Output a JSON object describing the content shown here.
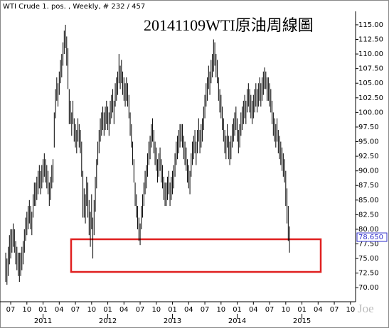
{
  "chart_data": {
    "type": "ohlc",
    "header": "WTI Crude 1. pos. , Weekly, # 232 / 457",
    "title": "20141109WTI原油周線圖",
    "watermark": "Joe",
    "color": "#000000",
    "categories": [
      null,
      null,
      null,
      null,
      null,
      null,
      null,
      null,
      null,
      null,
      null,
      null,
      null,
      null,
      null,
      null,
      null,
      null,
      null,
      null,
      null,
      null,
      null,
      null,
      null,
      null,
      null,
      null,
      null,
      null,
      null,
      null,
      null,
      null,
      null,
      null,
      null,
      null,
      null,
      null,
      null,
      null,
      null,
      null,
      null,
      null,
      null,
      null,
      null,
      null,
      null,
      null,
      null,
      null,
      null,
      null,
      null,
      null,
      null,
      null,
      null,
      null,
      null,
      null,
      null,
      null,
      null,
      null,
      null,
      null,
      null,
      null,
      null,
      null,
      null,
      null,
      null,
      null,
      null,
      null,
      null,
      null,
      null,
      null,
      null,
      null,
      null,
      null,
      null,
      null,
      null,
      null,
      null,
      null,
      null,
      null,
      null,
      null,
      null,
      null,
      null,
      null,
      null,
      null,
      null,
      null,
      null,
      null,
      null,
      null,
      null,
      null,
      null,
      null,
      null,
      null,
      null,
      null,
      null,
      null,
      null,
      null,
      null,
      null,
      null,
      null,
      null,
      null,
      null,
      null,
      null,
      null,
      null,
      null,
      null,
      null,
      null,
      null,
      null,
      null,
      null,
      null,
      null,
      null,
      null,
      null,
      null,
      null,
      null,
      null,
      null,
      null,
      null,
      null,
      null,
      null,
      null,
      null,
      null,
      null,
      null,
      null,
      null,
      null,
      null,
      null,
      null,
      null,
      null,
      null,
      null,
      null,
      null,
      null,
      null,
      null,
      null,
      null,
      null,
      null,
      null,
      null,
      null,
      null,
      null,
      null,
      null,
      null,
      null,
      null,
      null,
      null,
      null,
      null,
      null,
      null,
      null,
      null,
      null,
      null,
      null,
      null,
      null,
      null,
      null,
      null,
      null,
      null,
      null,
      null,
      null,
      null,
      null,
      null,
      null,
      null,
      null,
      null,
      null,
      null,
      null,
      null,
      null,
      null,
      null,
      null,
      null,
      null,
      null
    ],
    "high": [
      76,
      75,
      77,
      79,
      80,
      80,
      81,
      80,
      78,
      77,
      76,
      76,
      76,
      77,
      78,
      80,
      82,
      83,
      84,
      85,
      84,
      83,
      86,
      88,
      88,
      89,
      90,
      91,
      90,
      91,
      92,
      93,
      92,
      91,
      90,
      88,
      89,
      91,
      92,
      100,
      104,
      106,
      105,
      107,
      109,
      110,
      112,
      114,
      115,
      113,
      111,
      104,
      102,
      100,
      102,
      99,
      98,
      97,
      99,
      98,
      97,
      95,
      90,
      87,
      86,
      89,
      88,
      85,
      83,
      86,
      82,
      85,
      89,
      92,
      95,
      97,
      99,
      100,
      101,
      100,
      101,
      102,
      101,
      100,
      102,
      103,
      104,
      102,
      105,
      106,
      107,
      110,
      108,
      109,
      107,
      106,
      105,
      106,
      105,
      103,
      100,
      98,
      95,
      92,
      88,
      86,
      84,
      82,
      81,
      84,
      86,
      88,
      90,
      91,
      93,
      95,
      96,
      98,
      99,
      97,
      95,
      94,
      92,
      93,
      94,
      92,
      91,
      89,
      88,
      88,
      89,
      90,
      88,
      89,
      90,
      91,
      93,
      95,
      96,
      97,
      98,
      98,
      98,
      96,
      95,
      94,
      92,
      91,
      90,
      93,
      95,
      96,
      97,
      95,
      97,
      99,
      97,
      98,
      99,
      101,
      103,
      105,
      106,
      108,
      107,
      109,
      110,
      112.5,
      112,
      110,
      109,
      106,
      104,
      103,
      101,
      99,
      97,
      96,
      98,
      96,
      95,
      96,
      98,
      99,
      100,
      101,
      99,
      97,
      98,
      100,
      101,
      102,
      103,
      102,
      104,
      105,
      104,
      103,
      102,
      103,
      104,
      105,
      104,
      105,
      106,
      105,
      106,
      107,
      107.7,
      107,
      106,
      106,
      105,
      104,
      102,
      100,
      99,
      98,
      99,
      97,
      96,
      95,
      94,
      93,
      92,
      90,
      87,
      84,
      80.5
    ],
    "low": [
      71,
      70.5,
      72,
      74,
      75,
      76,
      77,
      76,
      74,
      73,
      72,
      71,
      72,
      73,
      74,
      76,
      78,
      79,
      80,
      81,
      80,
      79,
      82,
      84,
      84,
      85,
      86,
      87,
      86,
      87,
      88,
      89,
      88,
      87,
      86,
      84,
      85,
      87,
      88,
      94,
      99,
      102,
      101,
      103,
      105,
      106,
      108,
      110,
      111,
      108,
      104,
      98,
      98,
      96,
      98,
      95,
      94,
      93,
      95,
      94,
      93,
      89,
      82,
      82,
      81,
      84,
      82,
      79,
      77,
      80,
      75,
      79,
      83,
      87,
      91,
      93,
      95,
      96,
      97,
      96,
      97,
      98,
      97,
      96,
      98,
      99,
      100,
      98,
      101,
      102,
      103,
      105,
      104,
      105,
      103,
      102,
      101,
      102,
      101,
      99,
      96,
      94,
      91,
      88,
      84,
      82,
      80,
      78,
      77.3,
      80,
      82,
      84,
      86,
      87,
      89,
      91,
      92,
      94,
      95,
      93,
      91,
      90,
      88,
      89,
      90,
      88,
      87,
      85,
      84,
      84,
      85,
      86,
      84,
      85,
      86,
      87,
      89,
      91,
      92,
      93,
      94,
      95,
      94,
      92,
      91,
      90,
      88,
      87,
      86,
      89,
      91,
      92,
      93,
      91,
      93,
      95,
      93,
      94,
      95,
      97,
      99,
      101,
      102,
      104,
      103,
      105,
      106,
      107,
      108,
      106,
      105,
      102,
      100,
      99,
      97,
      95,
      93,
      92,
      94,
      92,
      91,
      92,
      94,
      95,
      96,
      97,
      95,
      93,
      94,
      96,
      97,
      98,
      99,
      98,
      100,
      101,
      100,
      99,
      98,
      99,
      100,
      101,
      100,
      101,
      102,
      101,
      102,
      103,
      104,
      104,
      102,
      102,
      101,
      100,
      98,
      96,
      95,
      94,
      95,
      93,
      92,
      91,
      90,
      89,
      88,
      84,
      81,
      78,
      76
    ],
    "last_value": {
      "value": 78.65,
      "label": "78.650"
    },
    "last_color": "#3333cc",
    "xlim": [
      -4.6,
      281.1
    ],
    "xticks": [
      {
        "value": 4,
        "label": "07"
      },
      {
        "value": 17,
        "label": "10"
      },
      {
        "value": 30,
        "label": "01"
      },
      {
        "value": 43,
        "label": "04"
      },
      {
        "value": 56,
        "label": "07"
      },
      {
        "value": 69,
        "label": "10"
      },
      {
        "value": 82,
        "label": "01"
      },
      {
        "value": 95,
        "label": "04"
      },
      {
        "value": 108,
        "label": "07"
      },
      {
        "value": 121,
        "label": "10"
      },
      {
        "value": 134,
        "label": "01"
      },
      {
        "value": 147,
        "label": "04"
      },
      {
        "value": 160,
        "label": "07"
      },
      {
        "value": 173,
        "label": "10"
      },
      {
        "value": 186,
        "label": "01"
      },
      {
        "value": 199,
        "label": "04"
      },
      {
        "value": 212,
        "label": "07"
      },
      {
        "value": 225,
        "label": "10"
      },
      {
        "value": 238,
        "label": "01"
      },
      {
        "value": 251,
        "label": "04"
      },
      {
        "value": 264,
        "label": "07"
      },
      {
        "value": 277,
        "label": "10"
      }
    ],
    "year_labels": [
      {
        "value": 30,
        "label": "2011"
      },
      {
        "value": 82,
        "label": "2012"
      },
      {
        "value": 134,
        "label": "2013"
      },
      {
        "value": 186,
        "label": "2014"
      },
      {
        "value": 238,
        "label": "2015"
      }
    ],
    "ylim": [
      67.6,
      117.3
    ],
    "yticks": [
      {
        "value": 70,
        "label": "70.00"
      },
      {
        "value": 72.5,
        "label": "72.50"
      },
      {
        "value": 75,
        "label": "75.00"
      },
      {
        "value": 77.5,
        "label": "77.50"
      },
      {
        "value": 80,
        "label": "80.00"
      },
      {
        "value": 82.5,
        "label": "82.50"
      },
      {
        "value": 85,
        "label": "85.00"
      },
      {
        "value": 87.5,
        "label": "87.50"
      },
      {
        "value": 90,
        "label": "90.00"
      },
      {
        "value": 92.5,
        "label": "92.50"
      },
      {
        "value": 95,
        "label": "95.00"
      },
      {
        "value": 97.5,
        "label": "97.50"
      },
      {
        "value": 100,
        "label": "100.00"
      },
      {
        "value": 102.5,
        "label": "102.50"
      },
      {
        "value": 105,
        "label": "105.00"
      },
      {
        "value": 107.5,
        "label": "107.50"
      },
      {
        "value": 110,
        "label": "110.00"
      },
      {
        "value": 112.5,
        "label": "112.50"
      },
      {
        "value": 115,
        "label": "115.00"
      }
    ]
  }
}
